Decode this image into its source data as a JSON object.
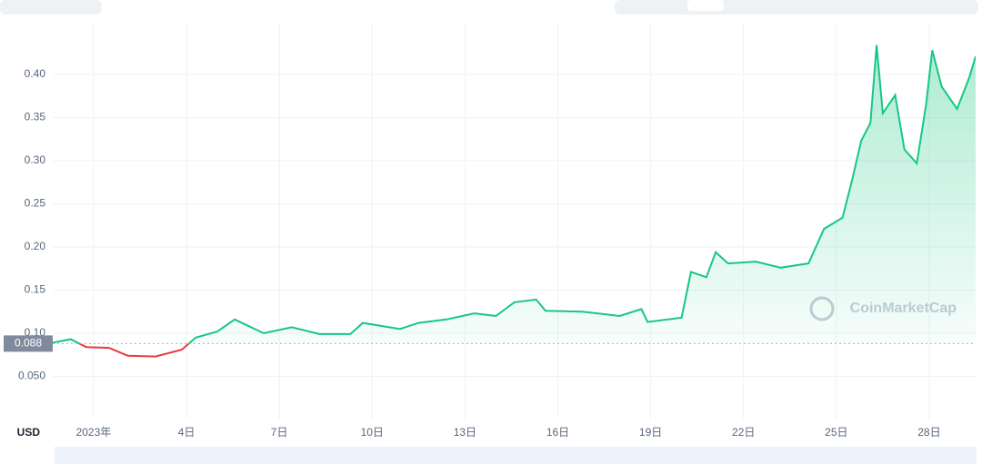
{
  "chart_data": {
    "type": "line",
    "currency": "USD",
    "watermark": "CoinMarketCap",
    "baseline": 0.088,
    "color_up": "#16c784",
    "color_down": "#ea3943",
    "x": [
      -0.32,
      0.26,
      0.76,
      1.5,
      2.1,
      3.0,
      3.85,
      4.3,
      5.0,
      5.56,
      6.5,
      7.4,
      8.3,
      9.3,
      9.7,
      10.9,
      11.5,
      12.4,
      13.3,
      14.0,
      14.6,
      15.3,
      15.6,
      16.8,
      18.0,
      18.7,
      18.9,
      20.0,
      20.3,
      20.8,
      21.1,
      21.5,
      22.4,
      23.2,
      24.1,
      24.6,
      25.2,
      25.5,
      25.8,
      26.1,
      26.3,
      26.5,
      26.9,
      27.2,
      27.6,
      27.9,
      28.1,
      28.4,
      28.9,
      29.3,
      29.5
    ],
    "values": [
      0.089,
      0.093,
      0.084,
      0.083,
      0.074,
      0.073,
      0.081,
      0.095,
      0.102,
      0.116,
      0.1,
      0.107,
      0.099,
      0.099,
      0.112,
      0.105,
      0.112,
      0.116,
      0.123,
      0.12,
      0.136,
      0.139,
      0.126,
      0.125,
      0.12,
      0.128,
      0.113,
      0.118,
      0.171,
      0.165,
      0.194,
      0.181,
      0.183,
      0.176,
      0.181,
      0.221,
      0.234,
      0.276,
      0.323,
      0.344,
      0.434,
      0.355,
      0.376,
      0.313,
      0.297,
      0.365,
      0.428,
      0.386,
      0.36,
      0.397,
      0.421
    ],
    "xlim": [
      -0.32,
      29.5
    ],
    "xticks": [
      {
        "value": 1,
        "label": "2023年"
      },
      {
        "value": 4,
        "label": "4日"
      },
      {
        "value": 7,
        "label": "7日"
      },
      {
        "value": 10,
        "label": "10日"
      },
      {
        "value": 13,
        "label": "13日"
      },
      {
        "value": 16,
        "label": "16日"
      },
      {
        "value": 19,
        "label": "19日"
      },
      {
        "value": 22,
        "label": "22日"
      },
      {
        "value": 25,
        "label": "25日"
      },
      {
        "value": 28,
        "label": "28日"
      }
    ],
    "ylim": [
      0,
      0.46
    ],
    "yticks": [
      {
        "value": 0.05,
        "label": "0.050"
      },
      {
        "value": 0.1,
        "label": "0.10"
      },
      0.15,
      {
        "value": 0.2,
        "label": "0.20"
      },
      0.25,
      {
        "value": 0.3,
        "label": "0.30"
      },
      0.35,
      {
        "value": 0.4,
        "label": "0.40"
      }
    ],
    "grid": true
  }
}
